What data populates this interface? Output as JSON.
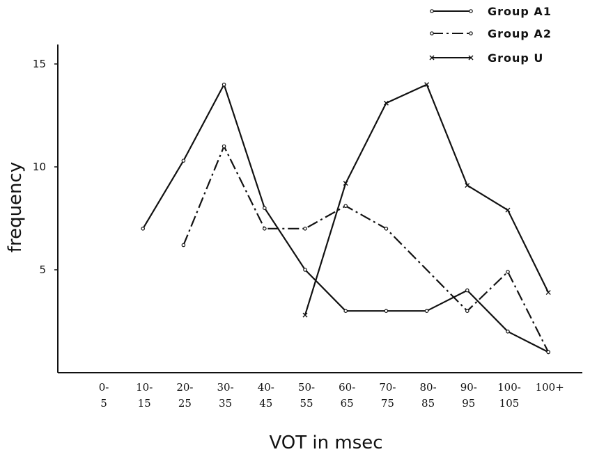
{
  "chart_data": {
    "type": "line",
    "title": "",
    "xlabel": "VOT in msec",
    "ylabel": "frequency",
    "categories": [
      [
        "0-",
        "5"
      ],
      [
        "10-",
        "15"
      ],
      [
        "20-",
        "25"
      ],
      [
        "30-",
        "35"
      ],
      [
        "40-",
        "45"
      ],
      [
        "50-",
        "55"
      ],
      [
        "60-",
        "65"
      ],
      [
        "70-",
        "75"
      ],
      [
        "80-",
        "85"
      ],
      [
        "90-",
        "95"
      ],
      [
        "100-",
        "105"
      ],
      [
        "100+",
        ""
      ]
    ],
    "yticks": [
      5,
      10,
      15
    ],
    "ylim": [
      0,
      16
    ],
    "grid": false,
    "legend_position": "top-right",
    "series": [
      {
        "name": "Group A1",
        "style": "solid",
        "marker": "dot",
        "values": [
          null,
          7,
          10.3,
          14,
          8,
          5,
          3,
          3,
          3,
          4,
          2,
          1
        ]
      },
      {
        "name": "Group A2",
        "style": "dashdot",
        "marker": "dot",
        "values": [
          null,
          null,
          6.2,
          11,
          7,
          7,
          8.1,
          7,
          null,
          3,
          4.9,
          1
        ]
      },
      {
        "name": "Group U",
        "style": "solid",
        "marker": "x",
        "values": [
          null,
          null,
          null,
          null,
          null,
          2.8,
          9.2,
          13.1,
          14,
          9.1,
          7.9,
          3.9
        ]
      }
    ]
  }
}
